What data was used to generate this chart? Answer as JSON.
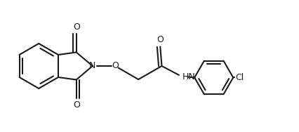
{
  "bg_color": "#ffffff",
  "line_color": "#1a1a1a",
  "line_width": 1.5,
  "font_size": 9,
  "fig_width": 4.26,
  "fig_height": 1.88,
  "dpi": 100,
  "xlim": [
    0,
    9.5
  ],
  "ylim": [
    0,
    4.2
  ]
}
